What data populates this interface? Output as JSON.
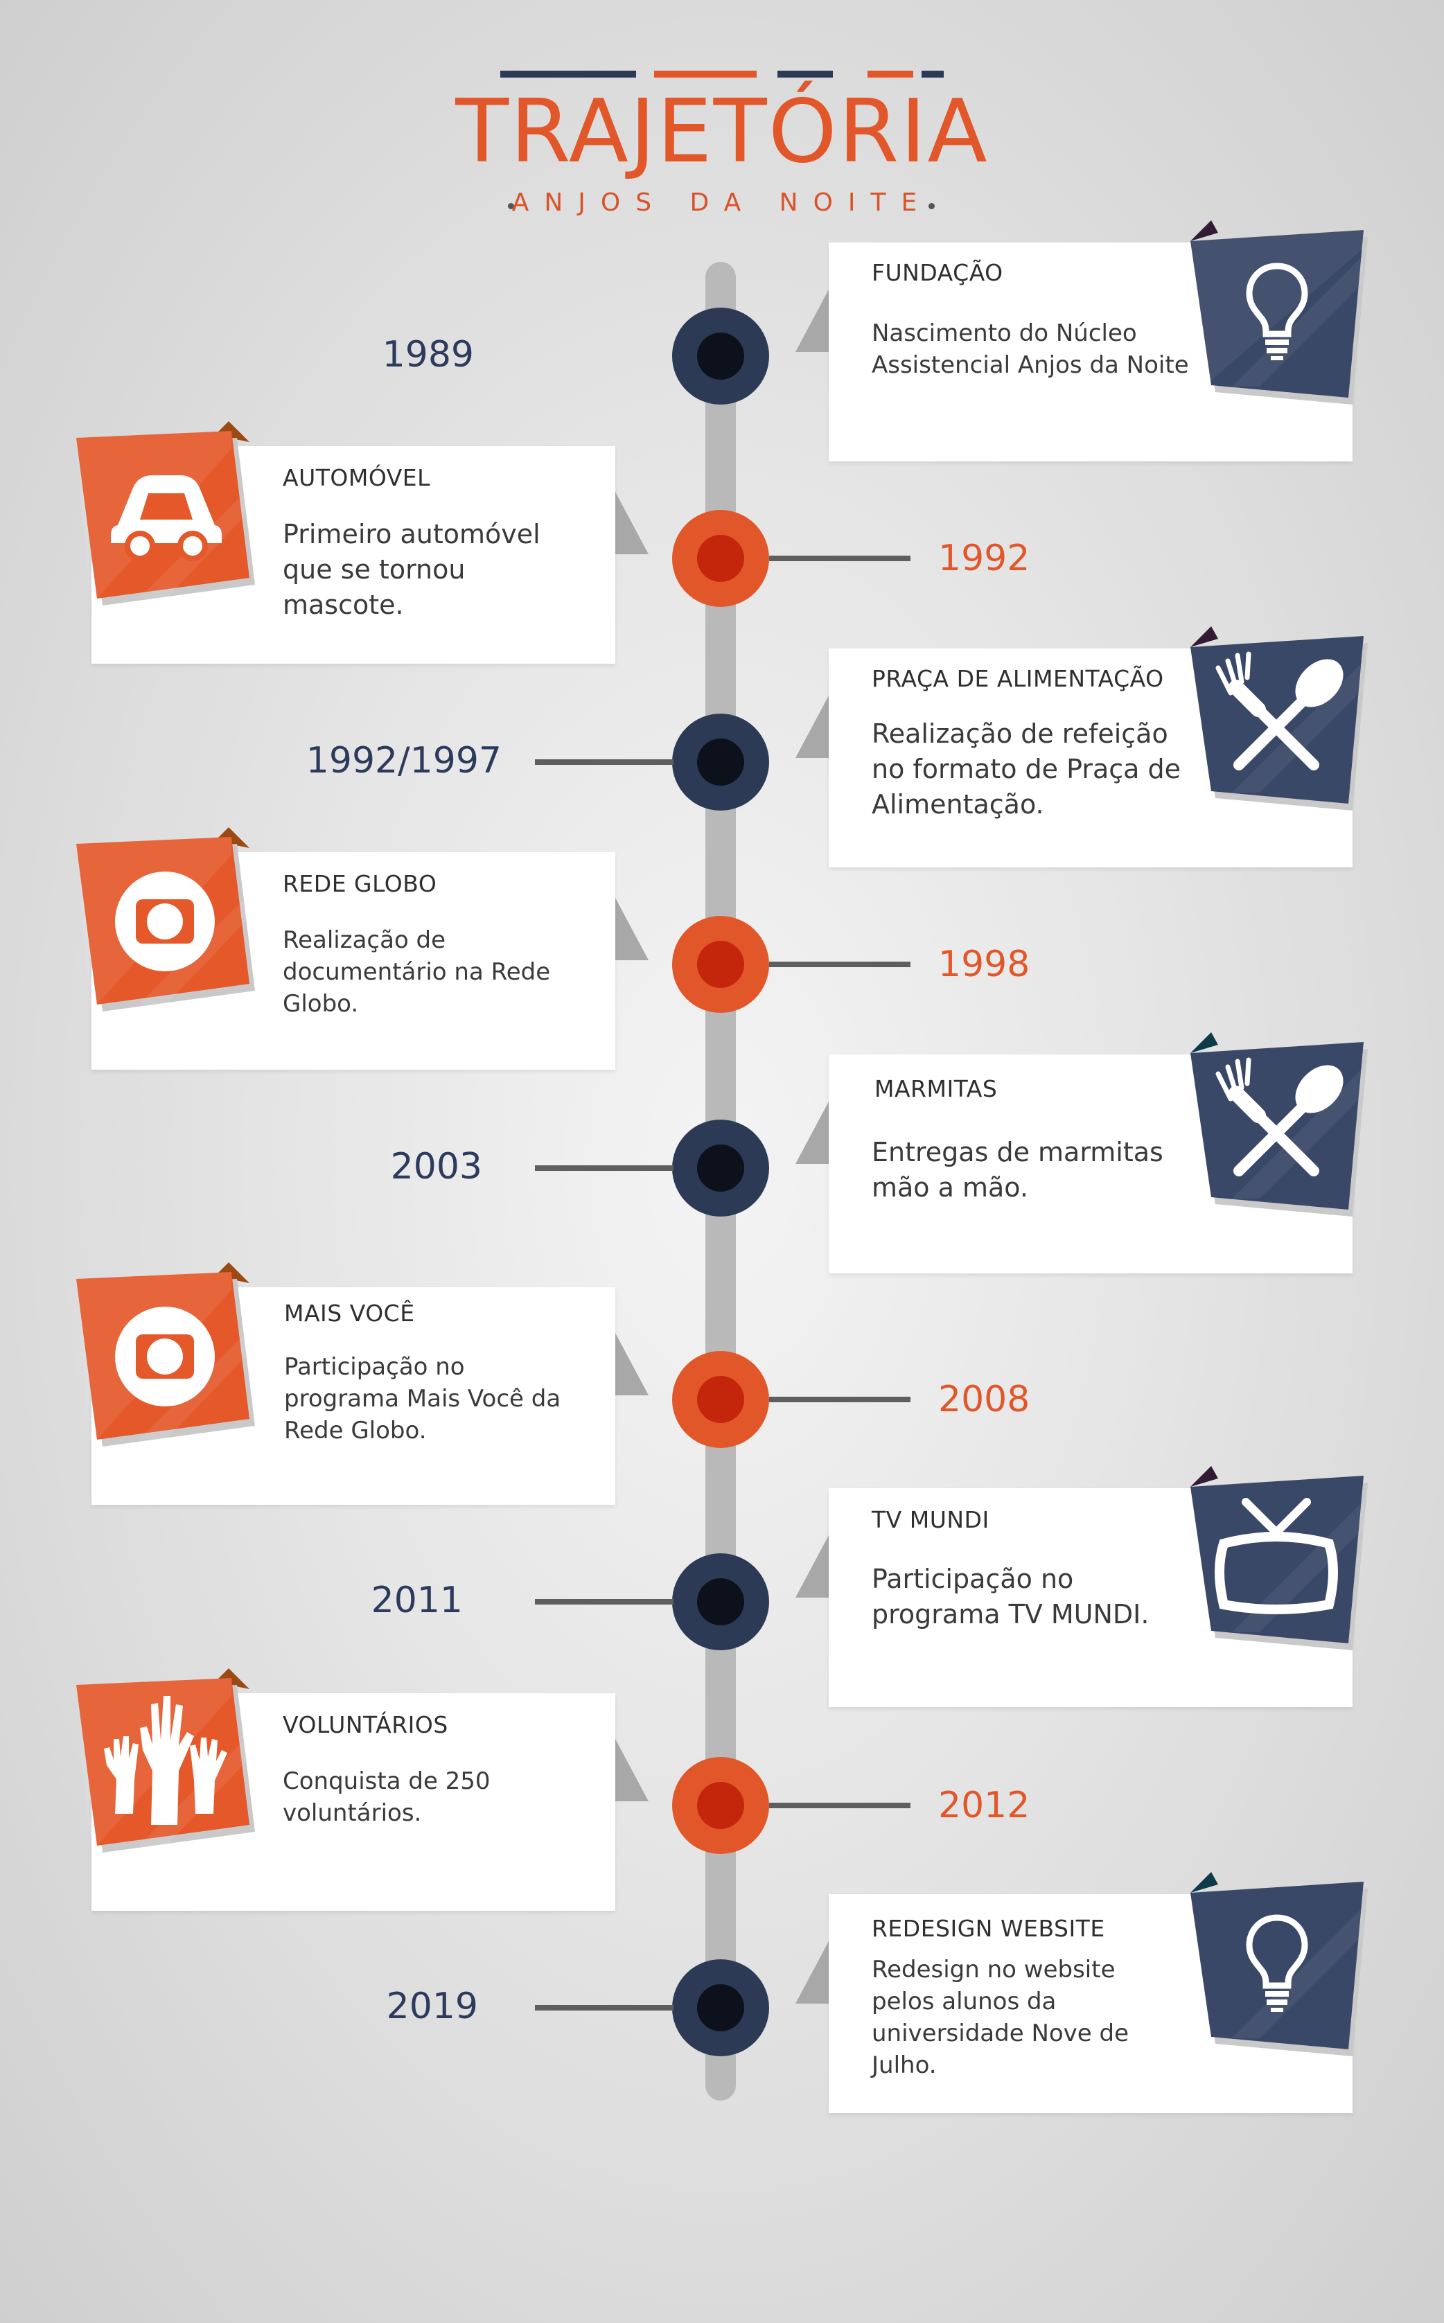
{
  "header": {
    "title": "TRAJETÓRIA",
    "subtitle": "ANJOS DA NOITE",
    "bar_colors": [
      "#2d3a56",
      "#e2572a",
      "#2d3a56",
      "#e2572a"
    ]
  },
  "colors": {
    "accent_orange": "#e2572a",
    "accent_navy": "#2d3a56",
    "axis": "#b9b9b9"
  },
  "timeline": [
    {
      "year": "1989",
      "title": "FUNDAÇÃO",
      "description": "Nascimento do Núcleo Assistencial Anjos da Noite",
      "icon": "lightbulb-icon"
    },
    {
      "year": "1992",
      "title": "AUTOMÓVEL",
      "description": "Primeiro automóvel que se tornou mascote.",
      "icon": "car-icon"
    },
    {
      "year": "1992/1997",
      "title": "PRAÇA DE ALIMENTAÇÃO",
      "description": "Realização de refeição no formato de Praça de Alimentação.",
      "icon": "fork-spoon-icon"
    },
    {
      "year": "1998",
      "title": "REDE GLOBO",
      "description": "Realização de documentário na Rede Globo.",
      "icon": "globo-icon"
    },
    {
      "year": "2003",
      "title": "MARMITAS",
      "description": "Entregas de marmitas mão a mão.",
      "icon": "fork-spoon-icon"
    },
    {
      "year": "2008",
      "title": "MAIS VOCÊ",
      "description": "Participação no programa Mais Você da Rede Globo.",
      "icon": "globo-icon"
    },
    {
      "year": "2011",
      "title": "TV MUNDI",
      "description": "Participação no programa TV MUNDI.",
      "icon": "tv-icon"
    },
    {
      "year": "2012",
      "title": "VOLUNTÁRIOS",
      "description": "Conquista de 250 voluntários.",
      "icon": "raised-hands-icon"
    },
    {
      "year": "2019",
      "title": "REDESIGN WEBSITE",
      "description": "Redesign no website pelos alunos da universidade Nove de Julho.",
      "icon": "lightbulb-icon"
    }
  ]
}
